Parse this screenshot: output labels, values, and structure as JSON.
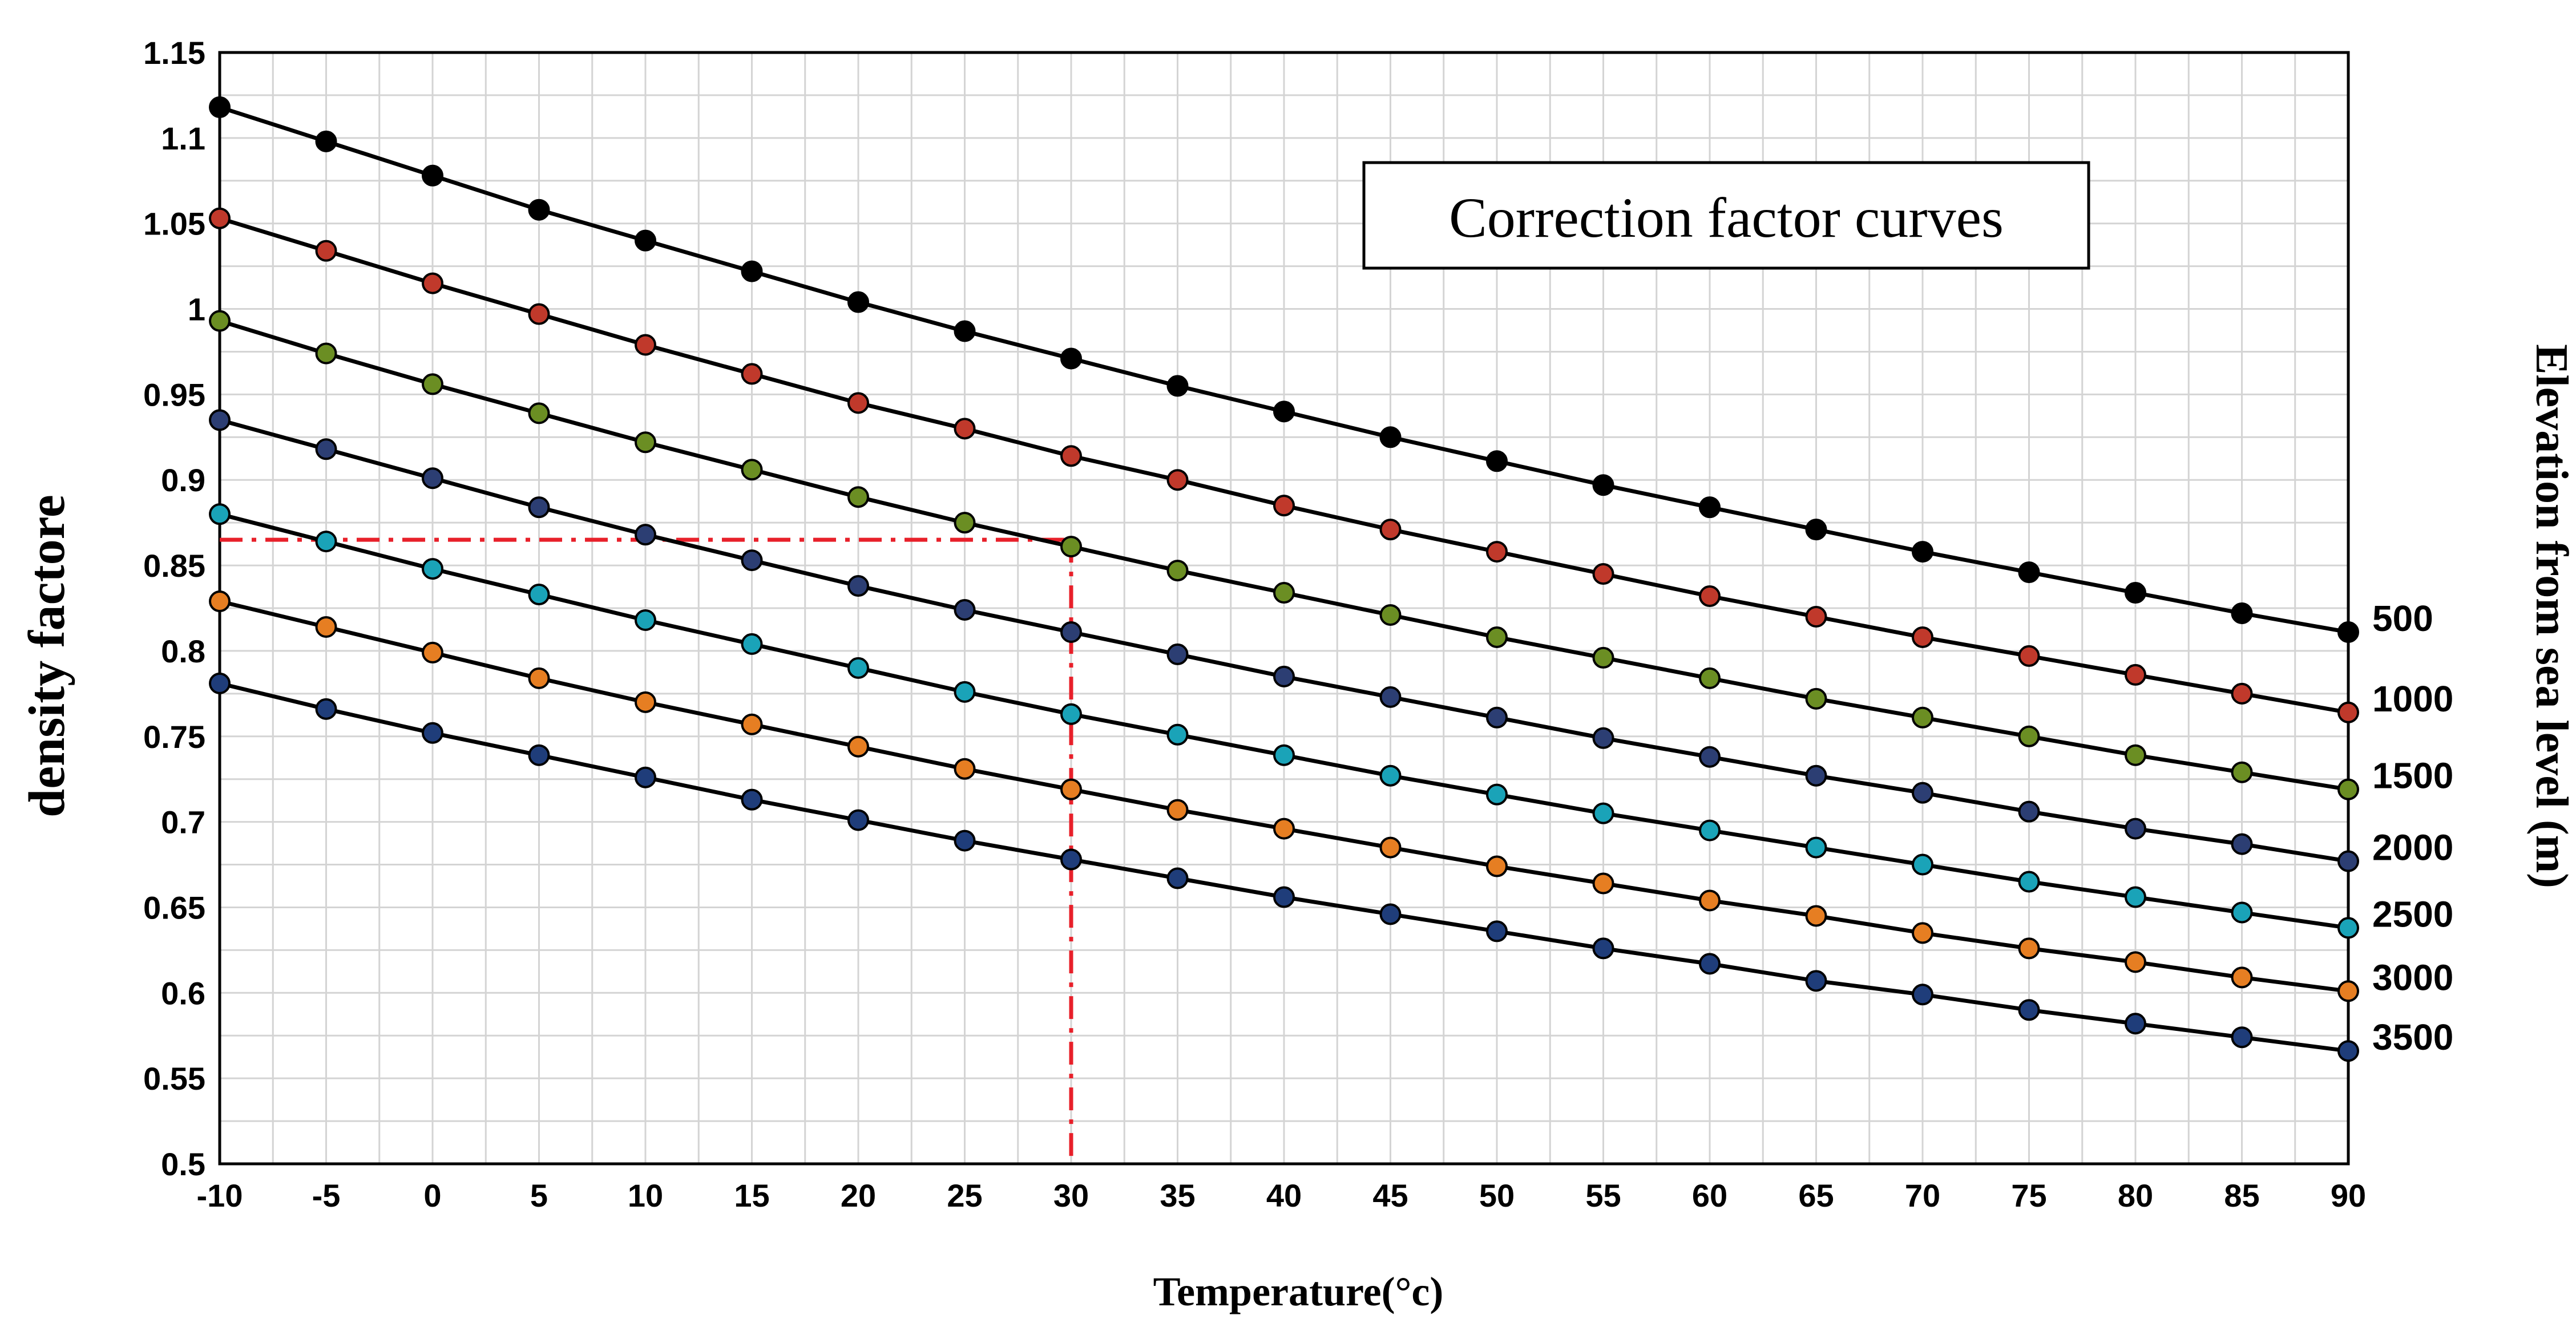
{
  "chart_data": {
    "type": "line",
    "title": "Correction factor curves",
    "xlabel": "Temperature(°c)",
    "ylabel": "density factore",
    "right_label": "Elevation from sea level (m)",
    "xlim": [
      -10,
      90
    ],
    "ylim": [
      0.5,
      1.15
    ],
    "grid": true,
    "x_ticks": [
      -10,
      -5,
      0,
      5,
      10,
      15,
      20,
      25,
      30,
      35,
      40,
      45,
      50,
      55,
      60,
      65,
      70,
      75,
      80,
      85,
      90
    ],
    "y_ticks": [
      "0.5",
      "0.55",
      "0.6",
      "0.65",
      "0.7",
      "0.75",
      "0.8",
      "0.85",
      "0.9",
      "0.95",
      "1",
      "1.05",
      "1.1",
      "1.15"
    ],
    "x": [
      -10,
      -5,
      0,
      5,
      10,
      15,
      20,
      25,
      30,
      35,
      40,
      45,
      50,
      55,
      60,
      65,
      70,
      75,
      80,
      85,
      90
    ],
    "series": [
      {
        "name": "500",
        "color": "#000000",
        "values": [
          1.118,
          1.098,
          1.078,
          1.058,
          1.04,
          1.022,
          1.004,
          0.987,
          0.971,
          0.955,
          0.94,
          0.925,
          0.911,
          0.897,
          0.884,
          0.871,
          0.858,
          0.846,
          0.834,
          0.822,
          0.811
        ]
      },
      {
        "name": "1000",
        "color": "#c0392b",
        "values": [
          1.053,
          1.034,
          1.015,
          0.997,
          0.979,
          0.962,
          0.945,
          0.93,
          0.914,
          0.9,
          0.885,
          0.871,
          0.858,
          0.845,
          0.832,
          0.82,
          0.808,
          0.797,
          0.786,
          0.775,
          0.764
        ]
      },
      {
        "name": "1500",
        "color": "#6b8e23",
        "values": [
          0.993,
          0.974,
          0.956,
          0.939,
          0.922,
          0.906,
          0.89,
          0.875,
          0.861,
          0.847,
          0.834,
          0.821,
          0.808,
          0.796,
          0.784,
          0.772,
          0.761,
          0.75,
          0.739,
          0.729,
          0.719
        ]
      },
      {
        "name": "2000",
        "color": "#2c3e73",
        "values": [
          0.935,
          0.918,
          0.901,
          0.884,
          0.868,
          0.853,
          0.838,
          0.824,
          0.811,
          0.798,
          0.785,
          0.773,
          0.761,
          0.749,
          0.738,
          0.727,
          0.717,
          0.706,
          0.696,
          0.687,
          0.677
        ]
      },
      {
        "name": "2500",
        "color": "#1aa3b8",
        "values": [
          0.88,
          0.864,
          0.848,
          0.833,
          0.818,
          0.804,
          0.79,
          0.776,
          0.763,
          0.751,
          0.739,
          0.727,
          0.716,
          0.705,
          0.695,
          0.685,
          0.675,
          0.665,
          0.656,
          0.647,
          0.638
        ]
      },
      {
        "name": "3000",
        "color": "#e67e22",
        "values": [
          0.829,
          0.814,
          0.799,
          0.784,
          0.77,
          0.757,
          0.744,
          0.731,
          0.719,
          0.707,
          0.696,
          0.685,
          0.674,
          0.664,
          0.654,
          0.645,
          0.635,
          0.626,
          0.618,
          0.609,
          0.601
        ]
      },
      {
        "name": "3500",
        "color": "#1f3d7a",
        "values": [
          0.781,
          0.766,
          0.752,
          0.739,
          0.726,
          0.713,
          0.701,
          0.689,
          0.678,
          0.667,
          0.656,
          0.646,
          0.636,
          0.626,
          0.617,
          0.607,
          0.599,
          0.59,
          0.582,
          0.574,
          0.566
        ]
      }
    ],
    "reference_point": {
      "x": 30,
      "y": 0.865,
      "color": "#e8202a"
    }
  }
}
